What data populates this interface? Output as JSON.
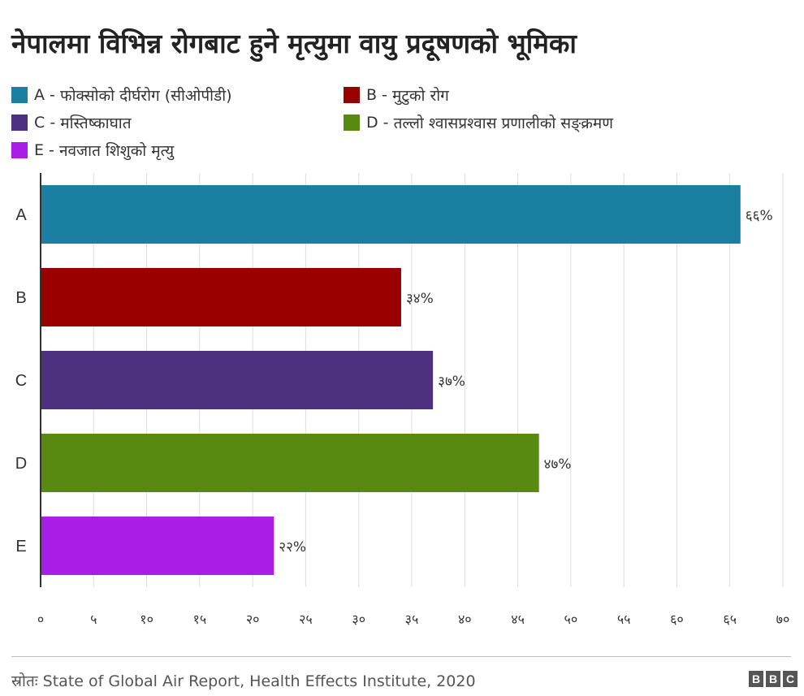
{
  "chart_data": {
    "type": "bar",
    "orientation": "horizontal",
    "title": "नेपालमा विभिन्न रोगबाट हुने मृत्युमा वायु प्रदूषणको भूमिका",
    "categories": [
      "A",
      "B",
      "C",
      "D",
      "E"
    ],
    "values": [
      66,
      34,
      37,
      47,
      22
    ],
    "data_labels": [
      "६६%",
      "३४%",
      "३७%",
      "४७%",
      "२२%"
    ],
    "colors": [
      "#1a7fa0",
      "#990000",
      "#4d2f7f",
      "#588a12",
      "#a81ee6"
    ],
    "legend": [
      {
        "key": "A",
        "label": "फोक्सोको दीर्घरोग (सीओपीडी)"
      },
      {
        "key": "B",
        "label": "मुटुको रोग"
      },
      {
        "key": "C",
        "label": "मस्तिष्काघात"
      },
      {
        "key": "D",
        "label": "तल्लो श्वासप्रश्वास प्रणालीको सङ्क्रमण"
      },
      {
        "key": "E",
        "label": "नवजात शिशुको मृत्यु"
      }
    ],
    "legend_placement": "top",
    "xlim": [
      0,
      70
    ],
    "xticks": [
      0,
      5,
      10,
      15,
      20,
      25,
      30,
      35,
      40,
      45,
      50,
      55,
      60,
      65,
      70
    ],
    "xtick_labels": [
      "०",
      "५",
      "१०",
      "१५",
      "२०",
      "२५",
      "३०",
      "३५",
      "४०",
      "४५",
      "५०",
      "५५",
      "६०",
      "६५",
      "७०"
    ],
    "grid": "vertical"
  },
  "footer": {
    "source": "स्रोतः State of Global Air Report, Health Effects Institute, 2020",
    "logo": [
      "B",
      "B",
      "C"
    ]
  }
}
